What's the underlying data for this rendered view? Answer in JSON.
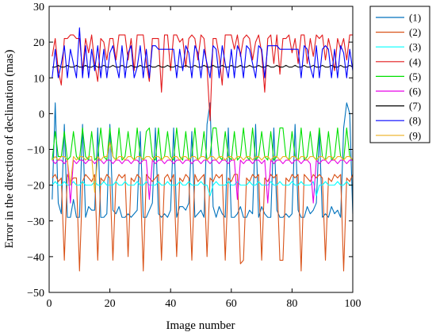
{
  "chart_data": {
    "type": "line",
    "title": "",
    "xlabel": "Image number",
    "ylabel": "Error in the direction of declination (mas)",
    "xlim": [
      0,
      100
    ],
    "ylim": [
      -50,
      30
    ],
    "xticks": [
      0,
      20,
      40,
      60,
      80,
      100
    ],
    "yticks": [
      -50,
      -40,
      -30,
      -20,
      -10,
      0,
      10,
      20,
      30
    ],
    "grid": false,
    "legend_position": "outside-right-top",
    "series": [
      {
        "name": "(1)",
        "color": "#0072BD",
        "values": [
          -24,
          3,
          -25,
          -28,
          -3,
          -29,
          -29,
          -24,
          -29,
          -29,
          -3,
          -29,
          -26,
          -27,
          -27,
          -4,
          -29,
          -29,
          -28,
          -3,
          -27,
          -28,
          -26,
          -29,
          -29,
          -28,
          -29,
          -28,
          -27,
          -5,
          -29,
          -29,
          -27,
          -25,
          -4,
          -28,
          -29,
          -28,
          -29,
          -27,
          -4,
          -29,
          -26,
          -26,
          -27,
          -25,
          -5,
          -29,
          -28,
          -27,
          -29,
          -3,
          3,
          -26,
          -29,
          -26,
          -28,
          -29,
          -4,
          -29,
          -29,
          -28,
          -26,
          -29,
          -29,
          -27,
          -28,
          -3,
          -29,
          -26,
          -28,
          -29,
          -29,
          -4,
          -27,
          -29,
          -29,
          -28,
          -29,
          -28,
          -3,
          -27,
          -29,
          -29,
          -26,
          -28,
          -27,
          -25,
          -5,
          -29,
          -28,
          -29,
          -26,
          -28,
          -27,
          -29,
          -4,
          3,
          0,
          -28
        ]
      },
      {
        "name": "(2)",
        "color": "#D95319",
        "values": [
          -18,
          -17,
          -19,
          -18,
          -41,
          -17,
          -19,
          -18,
          -18,
          -44,
          -19,
          -17,
          -18,
          -19,
          -17,
          -41,
          -18,
          -19,
          -17,
          -18,
          -41,
          -19,
          -17,
          -18,
          -17,
          -40,
          -18,
          -19,
          -17,
          -18,
          -44,
          -17,
          -18,
          -19,
          -18,
          -17,
          -41,
          -18,
          -17,
          -19,
          -17,
          -40,
          -18,
          -19,
          -17,
          -18,
          -41,
          -17,
          -19,
          -18,
          -17,
          -40,
          -18,
          -19,
          -17,
          -18,
          -17,
          -41,
          -18,
          -19,
          -17,
          -17,
          -42,
          -41,
          -18,
          -19,
          -17,
          -18,
          -17,
          -41,
          -18,
          -19,
          -17,
          -18,
          -17,
          -41,
          -41,
          -18,
          -19,
          -17,
          -18,
          -17,
          -44,
          -17,
          -18,
          -19,
          -17,
          -18,
          -17,
          -18,
          -41,
          -18,
          -19,
          -17,
          -18,
          -17,
          -44,
          -18,
          -19,
          -17
        ]
      },
      {
        "name": "(3)",
        "color": "#00FFFF",
        "values": [
          -20,
          -19,
          -20,
          -20,
          -19,
          -20,
          -20,
          -19,
          -20,
          -20,
          -19,
          -20,
          -20,
          -20,
          -19,
          -20,
          -20,
          -19,
          -20,
          -20,
          -20,
          -19,
          -20,
          -20,
          -19,
          -20,
          -20,
          -20,
          -19,
          -20,
          -20,
          -19,
          -20,
          -20,
          -20,
          -19,
          -20,
          -20,
          -19,
          -20,
          -20,
          -20,
          -19,
          -20,
          -20,
          -19,
          -20,
          -20,
          -20,
          -19,
          -20,
          -20,
          -23,
          -20,
          -19,
          -20,
          -20,
          -20,
          -19,
          -20,
          -20,
          -19,
          -20,
          -20,
          -20,
          -19,
          -20,
          -20,
          -19,
          -20,
          -20,
          -20,
          -19,
          -20,
          -20,
          -19,
          -20,
          -20,
          -20,
          -19,
          -20,
          -20,
          -19,
          -20,
          -20,
          -20,
          -19,
          -23,
          -20,
          -20,
          -19,
          -20,
          -20,
          -20,
          -19,
          -20,
          -20,
          -19,
          -20,
          -20
        ]
      },
      {
        "name": "(4)",
        "color": "#E31A1C",
        "values": [
          16,
          21,
          12,
          8,
          21,
          21,
          22,
          22,
          21,
          21,
          12,
          21,
          17,
          22,
          14,
          9,
          21,
          20,
          15,
          21,
          21,
          15,
          22,
          22,
          22,
          15,
          21,
          12,
          22,
          22,
          22,
          14,
          9,
          21,
          21,
          21,
          6,
          22,
          22,
          12,
          22,
          22,
          20,
          21,
          13,
          21,
          22,
          21,
          15,
          22,
          21,
          13,
          -2,
          21,
          21,
          16,
          8,
          22,
          22,
          22,
          18,
          22,
          16,
          21,
          22,
          21,
          15,
          20,
          22,
          17,
          6,
          21,
          22,
          14,
          22,
          11,
          21,
          21,
          22,
          17,
          21,
          14,
          22,
          22,
          14,
          21,
          16,
          22,
          21,
          22,
          15,
          21,
          17,
          12,
          21,
          18,
          21,
          15,
          22,
          22
        ]
      },
      {
        "name": "(5)",
        "color": "#00E000",
        "values": [
          -13,
          -5,
          -12,
          -12,
          -5,
          -13,
          -12,
          -5,
          -12,
          -13,
          -4,
          -12,
          -13,
          -5,
          -13,
          -12,
          -4,
          -12,
          -13,
          -4,
          -12,
          -13,
          -4,
          -13,
          -12,
          -5,
          -12,
          -13,
          -4,
          -12,
          -13,
          -5,
          -4,
          -12,
          -13,
          -4,
          -13,
          -12,
          -5,
          -12,
          -13,
          -4,
          -12,
          -13,
          -5,
          -13,
          -12,
          -4,
          -13,
          -12,
          -5,
          -13,
          -12,
          -4,
          -4,
          -12,
          -13,
          -5,
          -12,
          -13,
          -5,
          -13,
          -12,
          -4,
          -12,
          -13,
          -4,
          -13,
          -12,
          -5,
          -12,
          -13,
          -5,
          -13,
          -12,
          -4,
          -4,
          -12,
          -13,
          -5,
          -12,
          -13,
          -4,
          -13,
          -12,
          -5,
          -12,
          -13,
          -4,
          -12,
          -13,
          -5,
          -13,
          -12,
          -4,
          -12,
          -13,
          -4,
          -12,
          -13
        ]
      },
      {
        "name": "(6)",
        "color": "#E600E6",
        "values": [
          -13,
          -14,
          -13,
          -13,
          -14,
          -13,
          -25,
          -13,
          -14,
          -13,
          -13,
          -14,
          -13,
          -13,
          -14,
          -13,
          -13,
          -14,
          -13,
          -13,
          -14,
          -13,
          -13,
          -14,
          -13,
          -13,
          -14,
          -13,
          -13,
          -14,
          -13,
          -13,
          -24,
          -13,
          -14,
          -13,
          -13,
          -14,
          -13,
          -13,
          -14,
          -13,
          -13,
          -14,
          -13,
          -13,
          -14,
          -13,
          -13,
          -14,
          -13,
          -13,
          -14,
          -13,
          -13,
          -14,
          -13,
          -13,
          -14,
          -13,
          -13,
          -24,
          -13,
          -14,
          -13,
          -13,
          -14,
          -13,
          -13,
          -14,
          -13,
          -25,
          -13,
          -14,
          -13,
          -13,
          -14,
          -13,
          -13,
          -14,
          -13,
          -13,
          -14,
          -13,
          -13,
          -14,
          -25,
          -13,
          -14,
          -13,
          -13,
          -14,
          -13,
          -13,
          -14,
          -13,
          -13,
          -14,
          -13,
          -13
        ]
      },
      {
        "name": "(7)",
        "color": "#000000",
        "values": [
          13,
          13,
          13.5,
          13,
          13,
          13.5,
          13,
          13,
          13.5,
          13,
          13,
          13.5,
          13,
          13,
          13.5,
          13,
          13,
          13.5,
          13,
          13,
          13.5,
          13,
          13,
          13.5,
          13,
          13,
          13.5,
          13,
          13,
          13.5,
          13,
          13,
          13.5,
          13,
          13,
          13.5,
          13,
          13,
          13.5,
          13,
          13,
          13.5,
          13,
          13,
          13.5,
          13,
          13,
          13.5,
          13,
          13,
          13.5,
          13,
          13,
          13.5,
          13,
          13,
          13.5,
          13,
          13,
          13.5,
          13,
          13,
          13.5,
          13,
          13,
          13.5,
          13,
          13,
          13.5,
          13,
          13,
          13.5,
          13,
          13,
          13.5,
          13,
          13,
          13.5,
          13,
          13,
          13.5,
          13,
          13,
          13.5,
          13,
          13,
          13.5,
          13,
          13,
          13.5,
          13,
          13,
          13.5,
          13,
          13,
          13.5,
          13,
          13,
          13.5,
          13
        ]
      },
      {
        "name": "(8)",
        "color": "#0000FF",
        "values": [
          10,
          18,
          10,
          14,
          19,
          10,
          18,
          14,
          10,
          24,
          10,
          19,
          10,
          18,
          12,
          19,
          10,
          18,
          10,
          17,
          19,
          14,
          10,
          19,
          10,
          17,
          19,
          10,
          13,
          19,
          10,
          18,
          10,
          19,
          19,
          18,
          18,
          18,
          18,
          18,
          18,
          10,
          18,
          12,
          19,
          17,
          10,
          19,
          17,
          10,
          18,
          14,
          10,
          19,
          18,
          10,
          19,
          14,
          10,
          18,
          10,
          19,
          17,
          10,
          19,
          18,
          14,
          10,
          19,
          18,
          10,
          19,
          19,
          19,
          19,
          18,
          18,
          18,
          18,
          18,
          18,
          18,
          10,
          19,
          18,
          13,
          10,
          19,
          10,
          18,
          19,
          18,
          10,
          18,
          10,
          19,
          17,
          10,
          18,
          12
        ]
      },
      {
        "name": "(9)",
        "color": "#EDB120",
        "values": [
          -13,
          -12,
          -13,
          -12,
          -12,
          -13,
          -20,
          -12,
          -13,
          -12,
          -12,
          -13,
          -12,
          -12,
          -22,
          -12,
          -13,
          -12,
          -12,
          -8,
          -12,
          -13,
          -12,
          -12,
          -13,
          -12,
          -12,
          -13,
          -12,
          -12,
          -13,
          -12,
          -12,
          -13,
          -12,
          -12,
          -13,
          -12,
          -12,
          -13,
          -12,
          -12,
          -13,
          -12,
          -12,
          -13,
          -12,
          -12,
          -13,
          -12,
          -12,
          -13,
          -12,
          -12,
          -13,
          -12,
          -12,
          -13,
          -12,
          -12,
          -13,
          -12,
          -12,
          -13,
          -12,
          -12,
          -13,
          -12,
          -12,
          -13,
          -12,
          -12,
          -13,
          -12,
          -12,
          -13,
          -12,
          -12,
          -13,
          -12,
          -12,
          -13,
          -12,
          -12,
          -13,
          -12,
          -12,
          -13,
          -12,
          -12,
          -13,
          -12,
          -12,
          -13,
          -12,
          -12,
          -13,
          -12,
          -12,
          -13
        ]
      }
    ]
  }
}
